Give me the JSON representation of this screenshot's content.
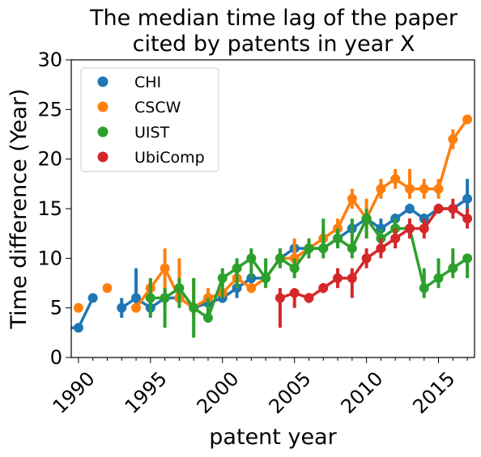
{
  "chart_data": {
    "type": "line",
    "title_lines": [
      "The median time lag of the paper",
      "cited by patents in year X"
    ],
    "xlabel": "patent year",
    "ylabel": "Time difference (Year)",
    "xlim": [
      1989.5,
      2017.5
    ],
    "ylim": [
      0,
      30
    ],
    "xticks": [
      1990,
      1995,
      2000,
      2005,
      2010,
      2015
    ],
    "yticks": [
      0,
      5,
      10,
      15,
      20,
      25,
      30
    ],
    "legend_position": "upper-left",
    "grid": false,
    "series": [
      {
        "name": "CHI",
        "color": "#1f77b4",
        "points": [
          {
            "x": 1989,
            "y": 3,
            "lo": 3,
            "hi": 3
          },
          {
            "x": 1990,
            "y": 3,
            "lo": 3,
            "hi": 3
          },
          {
            "x": 1991,
            "y": 6,
            "lo": 6,
            "hi": 6
          },
          {
            "x": 1993,
            "y": 5,
            "lo": 4,
            "hi": 6
          },
          {
            "x": 1994,
            "y": 6,
            "lo": 5,
            "hi": 9
          },
          {
            "x": 1995,
            "y": 5,
            "lo": 5,
            "hi": 6
          },
          {
            "x": 1996,
            "y": 6,
            "lo": 5,
            "hi": 7
          },
          {
            "x": 1997,
            "y": 6,
            "lo": 5.5,
            "hi": 7
          },
          {
            "x": 1998,
            "y": 5,
            "lo": 4.5,
            "hi": 5.5
          },
          {
            "x": 1999,
            "y": 5.5,
            "lo": 5,
            "hi": 6
          },
          {
            "x": 2000,
            "y": 6,
            "lo": 5.5,
            "hi": 7
          },
          {
            "x": 2001,
            "y": 7,
            "lo": 6,
            "hi": 7.5
          },
          {
            "x": 2002,
            "y": 8,
            "lo": 7,
            "hi": 8.5
          },
          {
            "x": 2003,
            "y": 8,
            "lo": 7.5,
            "hi": 8.5
          },
          {
            "x": 2004,
            "y": 10,
            "lo": 9.5,
            "hi": 10.5
          },
          {
            "x": 2005,
            "y": 11,
            "lo": 10.5,
            "hi": 11.5
          },
          {
            "x": 2006,
            "y": 11,
            "lo": 10.5,
            "hi": 11.5
          },
          {
            "x": 2007,
            "y": 11,
            "lo": 10.5,
            "hi": 11.5
          },
          {
            "x": 2008,
            "y": 12,
            "lo": 11.5,
            "hi": 12.5
          },
          {
            "x": 2009,
            "y": 13,
            "lo": 12.5,
            "hi": 13.5
          },
          {
            "x": 2010,
            "y": 14,
            "lo": 13.5,
            "hi": 14
          },
          {
            "x": 2011,
            "y": 13,
            "lo": 12,
            "hi": 14
          },
          {
            "x": 2012,
            "y": 14,
            "lo": 13.5,
            "hi": 14.5
          },
          {
            "x": 2013,
            "y": 15,
            "lo": 14.5,
            "hi": 15.5
          },
          {
            "x": 2014,
            "y": 14,
            "lo": 13.5,
            "hi": 14.5
          },
          {
            "x": 2015,
            "y": 15,
            "lo": 14.5,
            "hi": 15.5
          },
          {
            "x": 2016,
            "y": 15,
            "lo": 14.5,
            "hi": 15.5
          },
          {
            "x": 2017,
            "y": 16,
            "lo": 15,
            "hi": 18
          }
        ]
      },
      {
        "name": "CSCW",
        "color": "#ff7f0e",
        "points": [
          {
            "x": 1990,
            "y": 5,
            "lo": 5,
            "hi": 5
          },
          {
            "x": 1992,
            "y": 7,
            "lo": 7,
            "hi": 7
          },
          {
            "x": 1994,
            "y": 5,
            "lo": 5,
            "hi": 5
          },
          {
            "x": 1995,
            "y": 7,
            "lo": 6,
            "hi": 8
          },
          {
            "x": 1996,
            "y": 9,
            "lo": 6,
            "hi": 11
          },
          {
            "x": 1997,
            "y": 6,
            "lo": 6,
            "hi": 10
          },
          {
            "x": 1998,
            "y": 5,
            "lo": 4,
            "hi": 8
          },
          {
            "x": 1999,
            "y": 6,
            "lo": 5,
            "hi": 7
          },
          {
            "x": 2000,
            "y": 6.5,
            "lo": 6,
            "hi": 7
          },
          {
            "x": 2001,
            "y": 8,
            "lo": 7,
            "hi": 9
          },
          {
            "x": 2002,
            "y": 7,
            "lo": 6.5,
            "hi": 7.5
          },
          {
            "x": 2003,
            "y": 8,
            "lo": 7.5,
            "hi": 8.5
          },
          {
            "x": 2004,
            "y": 10,
            "lo": 9,
            "hi": 11
          },
          {
            "x": 2005,
            "y": 10,
            "lo": 9,
            "hi": 12
          },
          {
            "x": 2006,
            "y": 11,
            "lo": 10,
            "hi": 12
          },
          {
            "x": 2007,
            "y": 12,
            "lo": 11,
            "hi": 13
          },
          {
            "x": 2008,
            "y": 13,
            "lo": 12,
            "hi": 14
          },
          {
            "x": 2009,
            "y": 16,
            "lo": 15,
            "hi": 17
          },
          {
            "x": 2010,
            "y": 14,
            "lo": 12,
            "hi": 16
          },
          {
            "x": 2011,
            "y": 17,
            "lo": 16,
            "hi": 18
          },
          {
            "x": 2012,
            "y": 18,
            "lo": 17,
            "hi": 19
          },
          {
            "x": 2013,
            "y": 17,
            "lo": 16,
            "hi": 19
          },
          {
            "x": 2014,
            "y": 17,
            "lo": 16,
            "hi": 18
          },
          {
            "x": 2015,
            "y": 17,
            "lo": 16,
            "hi": 18
          },
          {
            "x": 2016,
            "y": 22,
            "lo": 21,
            "hi": 23
          },
          {
            "x": 2017,
            "y": 24,
            "lo": 24,
            "hi": 24
          }
        ]
      },
      {
        "name": "UIST",
        "color": "#2ca02c",
        "points": [
          {
            "x": 1995,
            "y": 6,
            "lo": 4,
            "hi": 8
          },
          {
            "x": 1996,
            "y": 6,
            "lo": 3,
            "hi": 7
          },
          {
            "x": 1997,
            "y": 7,
            "lo": 5,
            "hi": 8
          },
          {
            "x": 1998,
            "y": 5,
            "lo": 2,
            "hi": 8
          },
          {
            "x": 1999,
            "y": 4,
            "lo": 3.5,
            "hi": 6
          },
          {
            "x": 2000,
            "y": 8,
            "lo": 6,
            "hi": 9
          },
          {
            "x": 2001,
            "y": 9,
            "lo": 7,
            "hi": 10
          },
          {
            "x": 2002,
            "y": 10,
            "lo": 8,
            "hi": 11
          },
          {
            "x": 2003,
            "y": 8,
            "lo": 7,
            "hi": 10
          },
          {
            "x": 2004,
            "y": 10,
            "lo": 9,
            "hi": 11
          },
          {
            "x": 2005,
            "y": 9,
            "lo": 8,
            "hi": 10
          },
          {
            "x": 2006,
            "y": 11,
            "lo": 10,
            "hi": 12
          },
          {
            "x": 2007,
            "y": 11,
            "lo": 10,
            "hi": 14
          },
          {
            "x": 2008,
            "y": 12,
            "lo": 11,
            "hi": 13
          },
          {
            "x": 2009,
            "y": 11,
            "lo": 10,
            "hi": 14
          },
          {
            "x": 2010,
            "y": 14,
            "lo": 12,
            "hi": 15
          },
          {
            "x": 2011,
            "y": 12,
            "lo": 11,
            "hi": 13
          },
          {
            "x": 2012,
            "y": 13,
            "lo": 12,
            "hi": 14
          },
          {
            "x": 2013,
            "y": 13,
            "lo": 12,
            "hi": 14
          },
          {
            "x": 2014,
            "y": 7,
            "lo": 6,
            "hi": 9
          },
          {
            "x": 2015,
            "y": 8,
            "lo": 7,
            "hi": 10
          },
          {
            "x": 2016,
            "y": 9,
            "lo": 8,
            "hi": 11
          },
          {
            "x": 2017,
            "y": 10,
            "lo": 8,
            "hi": 10
          }
        ]
      },
      {
        "name": "UbiComp",
        "color": "#d62728",
        "points": [
          {
            "x": 2004,
            "y": 6,
            "lo": 3,
            "hi": 7
          },
          {
            "x": 2005,
            "y": 6.5,
            "lo": 5,
            "hi": 7
          },
          {
            "x": 2006,
            "y": 6,
            "lo": 5.5,
            "hi": 6.5
          },
          {
            "x": 2007,
            "y": 7,
            "lo": 6.5,
            "hi": 7.5
          },
          {
            "x": 2008,
            "y": 8,
            "lo": 7,
            "hi": 9
          },
          {
            "x": 2009,
            "y": 8,
            "lo": 6,
            "hi": 9
          },
          {
            "x": 2010,
            "y": 10,
            "lo": 9,
            "hi": 11
          },
          {
            "x": 2011,
            "y": 11,
            "lo": 10,
            "hi": 12
          },
          {
            "x": 2012,
            "y": 12,
            "lo": 11,
            "hi": 13
          },
          {
            "x": 2013,
            "y": 13,
            "lo": 12,
            "hi": 14
          },
          {
            "x": 2014,
            "y": 13,
            "lo": 12,
            "hi": 14
          },
          {
            "x": 2015,
            "y": 15,
            "lo": 14.5,
            "hi": 15.5
          },
          {
            "x": 2016,
            "y": 15,
            "lo": 14,
            "hi": 16
          },
          {
            "x": 2017,
            "y": 14,
            "lo": 13,
            "hi": 15
          }
        ]
      }
    ]
  }
}
